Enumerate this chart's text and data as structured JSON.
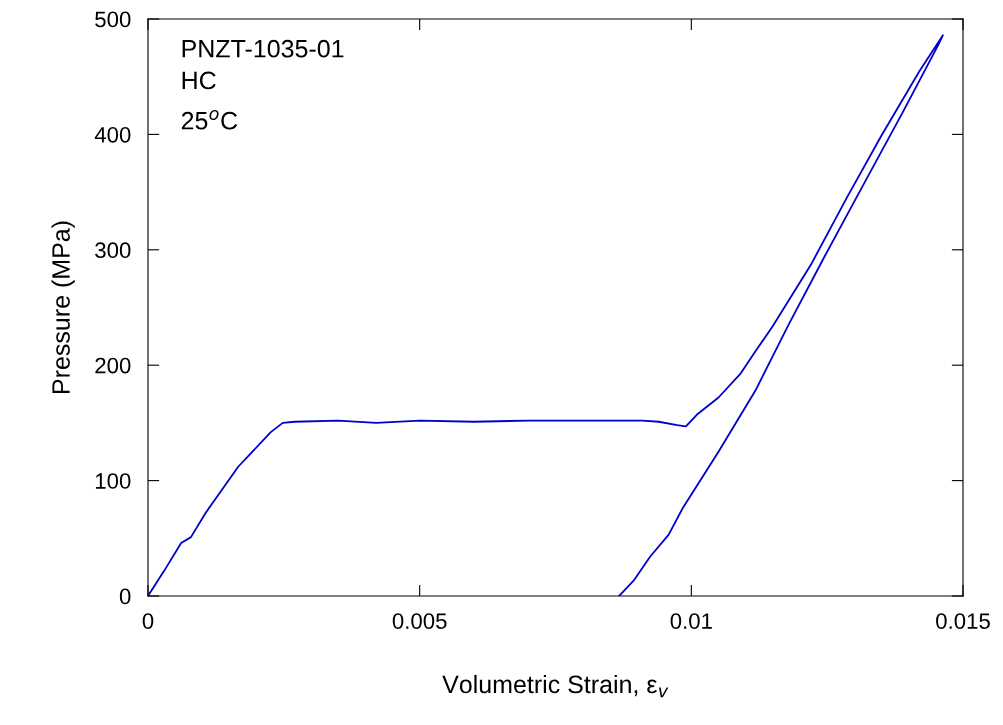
{
  "chart_data": {
    "type": "line",
    "xlabel": "Volumetric Strain, ε$_{v}$",
    "ylabel": "Pressure (MPa)",
    "annotations": [
      "PNZT-1035-01",
      "HC",
      "25$^{o}$C"
    ],
    "xlim": [
      0,
      0.015
    ],
    "xticks": [
      0,
      0.005,
      0.01,
      0.015
    ],
    "ylim": [
      0,
      500
    ],
    "yticks": [
      0,
      100,
      200,
      300,
      400,
      500
    ],
    "grid": false,
    "legend": false,
    "marker": "none",
    "line_style": "solid",
    "series": [
      {
        "color": "#0000cc",
        "x": [
          0,
          0.0003,
          0.00061,
          0.00079,
          0.00106,
          0.00166,
          0.00226,
          0.00248,
          0.0027,
          0.0035,
          0.0042,
          0.005,
          0.006,
          0.007,
          0.008,
          0.0091,
          0.0094,
          0.00974,
          0.0099,
          0.0101,
          0.0105,
          0.01091,
          0.01118,
          0.0115,
          0.0122,
          0.01286,
          0.0135,
          0.0142,
          0.01463,
          0.01455,
          0.0139,
          0.01315,
          0.01245,
          0.0118,
          0.01118,
          0.0105,
          0.00984,
          0.00958,
          0.00924,
          0.00895,
          0.00867
        ],
        "values": [
          0,
          22,
          46,
          51,
          72,
          112,
          142,
          150,
          151,
          152,
          150,
          152,
          151,
          152,
          152,
          152,
          151,
          148,
          147,
          157,
          172,
          193,
          212,
          234,
          287,
          345,
          399,
          455,
          486,
          478,
          420,
          355,
          294,
          236,
          178,
          125,
          76,
          53,
          34,
          14,
          0
        ]
      }
    ]
  }
}
